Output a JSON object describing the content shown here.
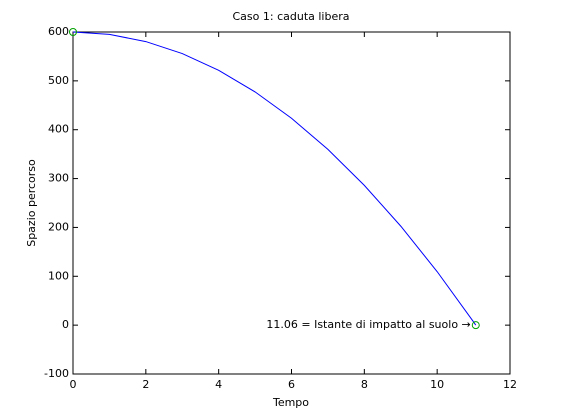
{
  "chart_data": {
    "type": "line",
    "title": "Caso 1: caduta libera",
    "xlabel": "Tempo",
    "ylabel": "Spazio percorso",
    "x": [
      0,
      1,
      2,
      3,
      4,
      5,
      6,
      7,
      8,
      9,
      10,
      11,
      11.06
    ],
    "series": [
      {
        "color": "#0000ff",
        "values": [
          600,
          595.1,
          580.4,
          555.9,
          521.5,
          477.4,
          423.4,
          359.7,
          286.1,
          202.7,
          109.5,
          6.5,
          0
        ]
      }
    ],
    "markers": {
      "color": "#00a000",
      "x": [
        0,
        11.06
      ],
      "values": [
        600,
        0
      ]
    },
    "annotation": "11.06 = Istante di impatto al suolo →",
    "xlim": [
      0,
      12
    ],
    "xticks": [
      0,
      2,
      4,
      6,
      8,
      10,
      12
    ],
    "ylim": [
      -100,
      600
    ],
    "yticks": [
      -100,
      0,
      100,
      200,
      300,
      400,
      500,
      600
    ],
    "grid": false
  }
}
